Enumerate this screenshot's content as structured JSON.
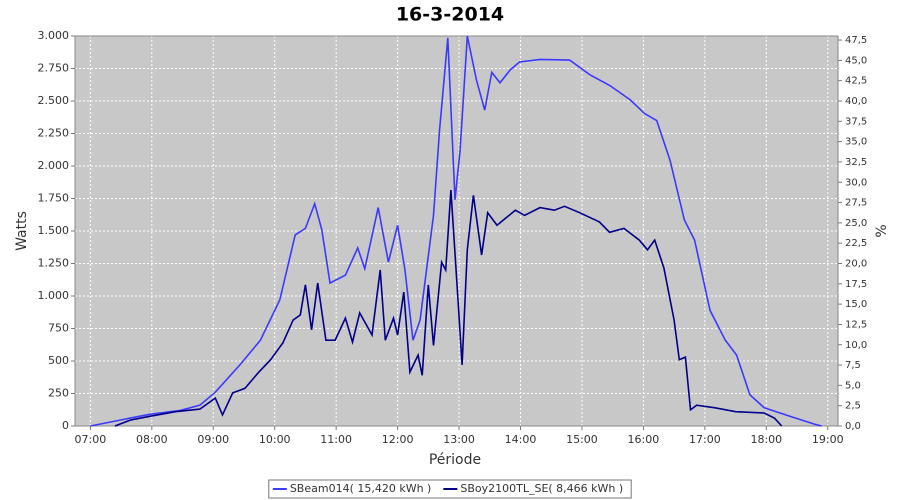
{
  "chart_data": {
    "type": "line",
    "title": "16-3-2014",
    "x_label": "Période",
    "y_label": "Watts",
    "y2_label": "%",
    "xlim": [
      "06:45",
      "19:10"
    ],
    "xticks": [
      "07:00",
      "08:00",
      "09:00",
      "10:00",
      "11:00",
      "12:00",
      "13:00",
      "14:00",
      "15:00",
      "16:00",
      "17:00",
      "18:00",
      "19:00"
    ],
    "ylim": [
      0,
      3000
    ],
    "yticks": [
      0,
      250,
      500,
      750,
      {
        "value": 1000,
        "label": "1.000"
      },
      {
        "value": 1250,
        "label": "1.250"
      },
      {
        "value": 1500,
        "label": "1.500"
      },
      {
        "value": 1750,
        "label": "1.750"
      },
      {
        "value": 2000,
        "label": "2.000"
      },
      {
        "value": 2250,
        "label": "2.250"
      },
      {
        "value": 2500,
        "label": "2.500"
      },
      {
        "value": 2750,
        "label": "2.750"
      },
      {
        "value": 3000,
        "label": "3.000"
      }
    ],
    "y2lim": [
      0,
      48
    ],
    "y2ticks": [
      {
        "value": 0,
        "label": "0,0"
      },
      {
        "value": 2.5,
        "label": "2,5"
      },
      {
        "value": 5,
        "label": "5,0"
      },
      {
        "value": 7.5,
        "label": "7,5"
      },
      {
        "value": 10,
        "label": "10,0"
      },
      {
        "value": 12.5,
        "label": "12,5"
      },
      {
        "value": 15,
        "label": "15,0"
      },
      {
        "value": 17.5,
        "label": "17,5"
      },
      {
        "value": 20,
        "label": "20,0"
      },
      {
        "value": 22.5,
        "label": "22,5"
      },
      {
        "value": 25,
        "label": "25,0"
      },
      {
        "value": 27.5,
        "label": "27,5"
      },
      {
        "value": 30,
        "label": "30,0"
      },
      {
        "value": 32.5,
        "label": "32,5"
      },
      {
        "value": 35,
        "label": "35,0"
      },
      {
        "value": 37.5,
        "label": "37,5"
      },
      {
        "value": 40,
        "label": "40,0"
      },
      {
        "value": 42.5,
        "label": "42,5"
      },
      {
        "value": 45,
        "label": "45,0"
      },
      {
        "value": 47.5,
        "label": "47,5"
      }
    ],
    "grid": true,
    "legend": "bottom",
    "series": [
      {
        "name": "SBeam014( 15,420 kWh )",
        "color": "#3a3aff",
        "x": [
          "07:00",
          "07:29",
          "07:58",
          "08:28",
          "08:47",
          "09:02",
          "09:26",
          "09:46",
          "10:05",
          "10:20",
          "10:30",
          "10:39",
          "10:46",
          "10:54",
          "11:09",
          "11:21",
          "11:28",
          "11:41",
          "11:51",
          "12:00",
          "12:07",
          "12:15",
          "12:22",
          "12:35",
          "12:41",
          "12:49",
          "12:56",
          "13:01",
          "13:08",
          "13:17",
          "13:25",
          "13:32",
          "13:40",
          "13:50",
          "13:59",
          "14:19",
          "14:48",
          "15:08",
          "15:27",
          "15:47",
          "16:01",
          "16:13",
          "16:26",
          "16:40",
          "16:50",
          "17:05",
          "17:20",
          "17:31",
          "17:44",
          "17:58",
          "18:23",
          "18:47",
          "18:54"
        ],
        "values": [
          0,
          45,
          90,
          120,
          160,
          260,
          470,
          660,
          970,
          1470,
          1520,
          1710,
          1510,
          1100,
          1160,
          1370,
          1210,
          1680,
          1260,
          1545,
          1210,
          660,
          815,
          1620,
          2280,
          2985,
          1740,
          2120,
          3000,
          2660,
          2430,
          2720,
          2640,
          2740,
          2800,
          2820,
          2815,
          2700,
          2620,
          2510,
          2405,
          2350,
          2045,
          1585,
          1430,
          890,
          660,
          545,
          240,
          140,
          75,
          15,
          0
        ]
      },
      {
        "name": "SBoy2100TL_SE( 8,466 kWh )",
        "color": "#00008b",
        "x": [
          "07:24",
          "07:39",
          "07:58",
          "08:23",
          "08:47",
          "09:02",
          "09:09",
          "09:19",
          "09:31",
          "09:44",
          "09:56",
          "10:08",
          "10:18",
          "10:25",
          "10:30",
          "10:36",
          "10:42",
          "10:50",
          "10:59",
          "11:09",
          "11:16",
          "11:23",
          "11:35",
          "11:43",
          "11:48",
          "11:56",
          "12:00",
          "12:06",
          "12:12",
          "12:20",
          "12:24",
          "12:30",
          "12:35",
          "12:43",
          "12:47",
          "12:52",
          "12:59",
          "13:03",
          "13:08",
          "13:14",
          "13:22",
          "13:28",
          "13:37",
          "13:55",
          "14:04",
          "14:19",
          "14:33",
          "14:43",
          "14:58",
          "15:17",
          "15:27",
          "15:41",
          "15:56",
          "16:04",
          "16:11",
          "16:20",
          "16:30",
          "16:35",
          "16:41",
          "16:46",
          "16:52",
          "17:10",
          "17:30",
          "17:58",
          "18:08",
          "18:15"
        ],
        "values": [
          0,
          45,
          75,
          110,
          130,
          215,
          85,
          255,
          290,
          410,
          510,
          640,
          815,
          855,
          1085,
          740,
          1100,
          660,
          660,
          830,
          645,
          870,
          700,
          1200,
          660,
          830,
          700,
          1030,
          415,
          545,
          390,
          1085,
          620,
          1260,
          1200,
          1815,
          970,
          470,
          1355,
          1775,
          1315,
          1640,
          1545,
          1660,
          1620,
          1680,
          1660,
          1690,
          1640,
          1570,
          1490,
          1520,
          1430,
          1355,
          1430,
          1215,
          815,
          510,
          530,
          125,
          160,
          140,
          110,
          100,
          60,
          0
        ]
      }
    ]
  }
}
